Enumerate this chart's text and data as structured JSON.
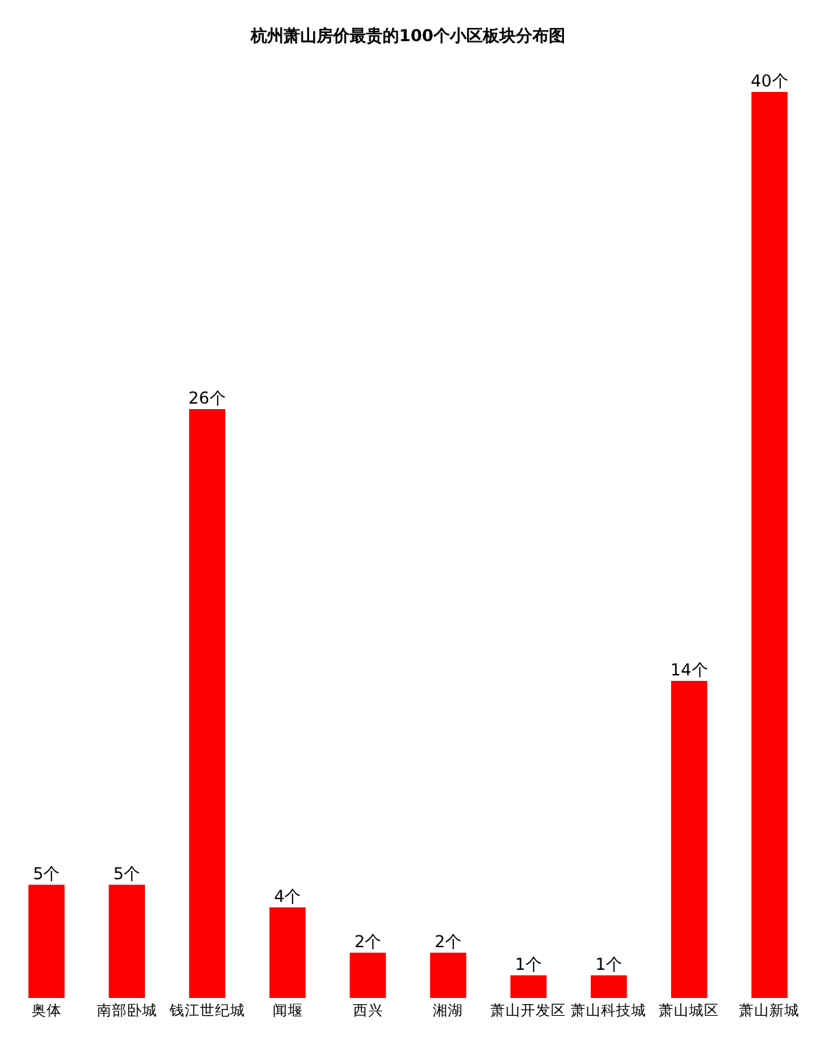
{
  "chart_data": {
    "type": "bar",
    "title": "杭州萧山房价最贵的100个小区板块分布图",
    "categories": [
      "奥体",
      "南部卧城",
      "钱江世纪城",
      "闻堰",
      "西兴",
      "湘湖",
      "萧山开发区",
      "萧山科技城",
      "萧山城区",
      "萧山新城"
    ],
    "values": [
      5,
      5,
      26,
      4,
      2,
      2,
      1,
      1,
      14,
      40
    ],
    "value_labels": [
      "5个",
      "5个",
      "26个",
      "4个",
      "2个",
      "2个",
      "1个",
      "1个",
      "14个",
      "40个"
    ],
    "color": "#ff0000"
  }
}
